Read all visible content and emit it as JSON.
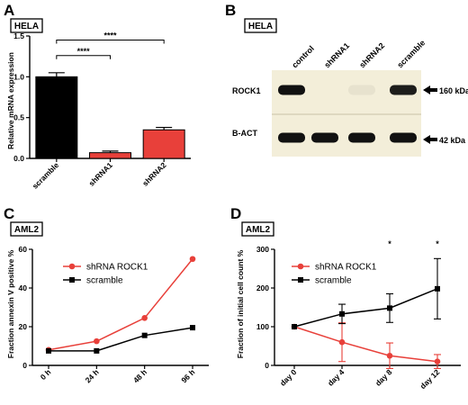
{
  "figure": {
    "panels": {
      "A": {
        "letter": "A",
        "cell_line": "HELA"
      },
      "B": {
        "letter": "B",
        "cell_line": "HELA"
      },
      "C": {
        "letter": "C",
        "cell_line": "AML2"
      },
      "D": {
        "letter": "D",
        "cell_line": "AML2"
      }
    },
    "blot": {
      "lanes": [
        "control",
        "shRNA1",
        "shRNA2",
        "scramble"
      ],
      "rows": [
        {
          "label": "ROCK1",
          "size": "160 kDa",
          "band_intensity": [
            1.0,
            0.0,
            0.05,
            0.95
          ]
        },
        {
          "label": "B-ACT",
          "size": "42 kDa",
          "band_intensity": [
            1.0,
            1.0,
            1.0,
            1.0
          ]
        }
      ],
      "background": "#f3eed9",
      "band_color": "#111111"
    },
    "colors": {
      "black": "#000000",
      "red": "#e8403a"
    }
  },
  "chart_data": [
    {
      "type": "bar",
      "panel": "A",
      "categories": [
        "scramble",
        "shRNA1",
        "shRNA2"
      ],
      "values": [
        1.0,
        0.07,
        0.35
      ],
      "errors": [
        0.05,
        0.02,
        0.03
      ],
      "colors": [
        "#000000",
        "#e8403a",
        "#e8403a"
      ],
      "ylabel": "Relative mRNA expression",
      "ylim": [
        0,
        1.5
      ],
      "yticks": [
        "0.0",
        "0.5",
        "1.0",
        "1.5"
      ],
      "significance": [
        {
          "from": "scramble",
          "to": "shRNA1",
          "label": "****"
        },
        {
          "from": "scramble",
          "to": "shRNA2",
          "label": "****"
        }
      ]
    },
    {
      "type": "line",
      "panel": "C",
      "x": [
        "0 h",
        "24 h",
        "48 h",
        "96 h"
      ],
      "series": [
        {
          "name": "shRNA ROCK1",
          "values": [
            8,
            12.5,
            24.5,
            55
          ],
          "color": "#e8403a",
          "marker": "circle"
        },
        {
          "name": "scramble",
          "values": [
            7.5,
            7.5,
            15.5,
            19.5
          ],
          "color": "#000000",
          "marker": "square"
        }
      ],
      "ylabel": "Fraction annexin V positive %",
      "ylim": [
        0,
        60
      ],
      "yticks": [
        "0",
        "20",
        "40",
        "60"
      ],
      "legend": "top-left"
    },
    {
      "type": "line",
      "panel": "D",
      "x": [
        "day 0",
        "day 4",
        "day 8",
        "day 12"
      ],
      "series": [
        {
          "name": "shRNA ROCK1",
          "values": [
            100,
            60,
            25,
            10
          ],
          "errors": [
            0,
            50,
            33,
            18
          ],
          "color": "#e8403a",
          "marker": "circle"
        },
        {
          "name": "scramble",
          "values": [
            100,
            133,
            148,
            198
          ],
          "errors": [
            0,
            25,
            37,
            78
          ],
          "color": "#000000",
          "marker": "square"
        }
      ],
      "ylabel": "Fraction of initial cell count %",
      "ylim": [
        0,
        300
      ],
      "yticks": [
        "0",
        "100",
        "200",
        "300"
      ],
      "annotations": [
        {
          "x": "day 8",
          "label": "*"
        },
        {
          "x": "day 12",
          "label": "*"
        }
      ],
      "legend": "top-left"
    }
  ]
}
